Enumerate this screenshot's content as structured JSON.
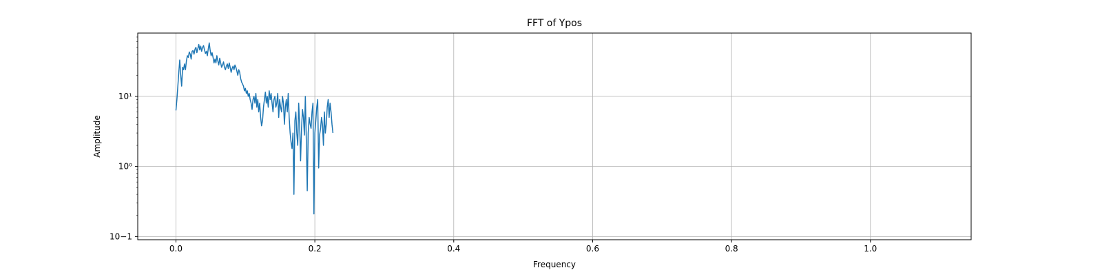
{
  "chart_data": {
    "type": "line",
    "title": "FFT of Ypos",
    "xlabel": "Frequency",
    "ylabel": "Amplitude",
    "xlim": [
      -0.055,
      1.145
    ],
    "ylim": [
      0.09,
      80
    ],
    "yscale": "log",
    "grid": true,
    "line_color": "#1f77b4",
    "x_ticks": [
      0.0,
      0.2,
      0.4,
      0.6,
      0.8,
      1.0
    ],
    "x_tick_labels": [
      "0.0",
      "0.2",
      "0.4",
      "0.6",
      "0.8",
      "1.0"
    ],
    "y_ticks": [
      0.1,
      1,
      10
    ],
    "y_tick_labels": [
      "10−1",
      "10⁰",
      "10¹"
    ],
    "series": [
      {
        "x_step": 0.00137,
        "x_start": 0.0,
        "values": [
          6.3,
          9,
          14,
          22,
          33,
          20,
          14,
          26,
          24,
          29,
          24,
          32,
          38,
          36,
          43,
          40,
          34,
          44,
          45,
          40,
          47,
          50,
          42,
          48,
          55,
          46,
          52,
          44,
          50,
          53,
          46,
          41,
          44,
          38,
          48,
          58,
          45,
          38,
          42,
          36,
          30,
          34,
          30,
          38,
          32,
          28,
          35,
          30,
          26,
          28,
          31,
          26,
          24,
          27,
          29,
          25,
          30,
          26,
          22,
          25,
          27,
          24,
          28,
          26,
          23,
          20,
          24,
          22,
          18,
          16,
          15,
          14,
          12,
          13,
          11,
          12,
          10,
          11,
          9,
          8,
          6.5,
          9,
          10,
          8,
          11,
          7,
          9,
          6,
          8,
          5,
          3.8,
          4.5,
          7,
          9,
          11.5,
          8,
          10,
          7,
          12,
          9,
          11,
          8,
          6,
          9,
          10,
          7,
          8,
          11,
          5,
          9,
          7,
          6,
          10,
          8,
          4,
          7,
          9,
          6,
          11,
          5,
          3,
          2.2,
          1.8,
          3,
          0.4,
          4.5,
          6,
          3,
          2,
          8,
          4,
          1.2,
          3.5,
          6.5,
          5,
          2.8,
          10,
          2.5,
          0.45,
          3,
          5,
          4,
          3.5,
          6,
          8,
          0.21,
          3,
          4.5,
          7,
          9,
          0.95,
          2.8,
          3.5,
          5,
          4,
          2,
          6,
          3,
          4,
          7,
          9,
          5,
          8,
          6,
          4,
          3
        ]
      }
    ]
  }
}
